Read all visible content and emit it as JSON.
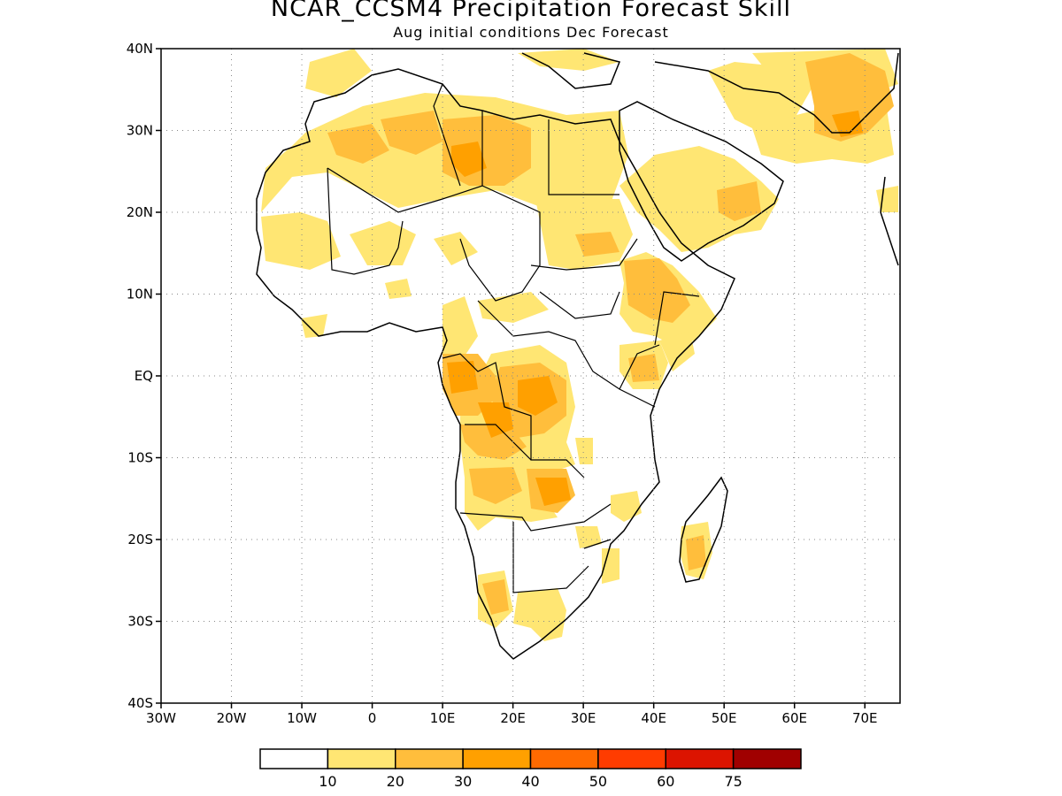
{
  "title": "NCAR_CCSM4 Precipitation Forecast Skill",
  "subtitle": "Aug initial conditions  Dec Forecast",
  "map": {
    "lon_range": [
      -30,
      75
    ],
    "lat_range": [
      -40,
      40
    ],
    "lat_ticks": [
      {
        "lat": 40,
        "label": "40N"
      },
      {
        "lat": 30,
        "label": "30N"
      },
      {
        "lat": 20,
        "label": "20N"
      },
      {
        "lat": 10,
        "label": "10N"
      },
      {
        "lat": 0,
        "label": "EQ"
      },
      {
        "lat": -10,
        "label": "10S"
      },
      {
        "lat": -20,
        "label": "20S"
      },
      {
        "lat": -30,
        "label": "30S"
      },
      {
        "lat": -40,
        "label": "40S"
      }
    ],
    "lon_ticks": [
      {
        "lon": -30,
        "label": "30W"
      },
      {
        "lon": -20,
        "label": "20W"
      },
      {
        "lon": -10,
        "label": "10W"
      },
      {
        "lon": 0,
        "label": "0"
      },
      {
        "lon": 10,
        "label": "10E"
      },
      {
        "lon": 20,
        "label": "20E"
      },
      {
        "lon": 30,
        "label": "30E"
      },
      {
        "lon": 40,
        "label": "40E"
      },
      {
        "lon": 50,
        "label": "50E"
      },
      {
        "lon": 60,
        "label": "60E"
      },
      {
        "lon": 70,
        "label": "70E"
      }
    ],
    "grid": true
  },
  "colorbar": {
    "colors": [
      "#ffffff",
      "#ffe673",
      "#ffbe3c",
      "#ffa000",
      "#ff6a00",
      "#ff3c00",
      "#dc1400",
      "#a00000"
    ],
    "labels": [
      "10",
      "20",
      "30",
      "40",
      "50",
      "60",
      "75"
    ]
  }
}
